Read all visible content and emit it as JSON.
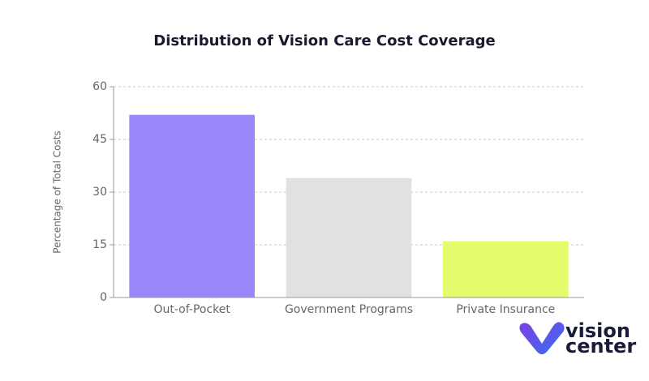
{
  "chart_data": {
    "type": "bar",
    "title": "Distribution of Vision Care Cost Coverage",
    "y_label": "Percentage of Total Costs",
    "categories": [
      "Out-of-Pocket",
      "Government Programs",
      "Private Insurance"
    ],
    "values": [
      52,
      34,
      16
    ],
    "colors": [
      "#9b87fc",
      "#e2e1df",
      "#e4fc6c"
    ],
    "ylim": [
      0,
      60
    ],
    "yticks": [
      0,
      15,
      30,
      45,
      60
    ],
    "grid": true
  },
  "branding": {
    "line1": "vision",
    "line2": "center"
  }
}
